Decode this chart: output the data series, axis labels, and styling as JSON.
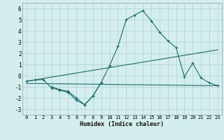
{
  "xlabel": "Humidex (Indice chaleur)",
  "bg_color": "#d4eeee",
  "grid_color": "#b0d0d0",
  "line_color": "#1a6b6b",
  "xlim": [
    -0.5,
    23.5
  ],
  "ylim": [
    -3.5,
    6.5
  ],
  "yticks": [
    -3,
    -2,
    -1,
    0,
    1,
    2,
    3,
    4,
    5,
    6
  ],
  "xticks": [
    0,
    1,
    2,
    3,
    4,
    5,
    6,
    7,
    8,
    9,
    10,
    11,
    12,
    13,
    14,
    15,
    16,
    17,
    18,
    19,
    20,
    21,
    22,
    23
  ],
  "curve1_x": [
    0,
    1,
    2,
    3,
    4,
    5,
    6,
    7,
    8,
    9
  ],
  "curve1_y": [
    -0.5,
    -0.4,
    -0.35,
    -1.1,
    -1.3,
    -1.5,
    -2.2,
    -2.6,
    -1.8,
    -0.6
  ],
  "curve2_x": [
    3,
    4,
    5,
    6,
    7,
    8,
    9,
    10,
    11,
    12,
    13,
    14,
    15,
    16,
    17,
    18,
    19,
    20,
    21,
    22,
    23
  ],
  "curve2_y": [
    -1.0,
    -1.25,
    -1.4,
    -2.0,
    -2.6,
    -1.8,
    -0.6,
    0.9,
    2.6,
    5.0,
    5.4,
    5.8,
    4.9,
    3.9,
    3.1,
    2.5,
    -0.1,
    1.1,
    -0.2,
    -0.65,
    -0.9
  ],
  "line3_x": [
    0,
    23
  ],
  "line3_y": [
    -0.5,
    2.3
  ],
  "line4_x": [
    0,
    23
  ],
  "line4_y": [
    -0.7,
    -0.9
  ]
}
